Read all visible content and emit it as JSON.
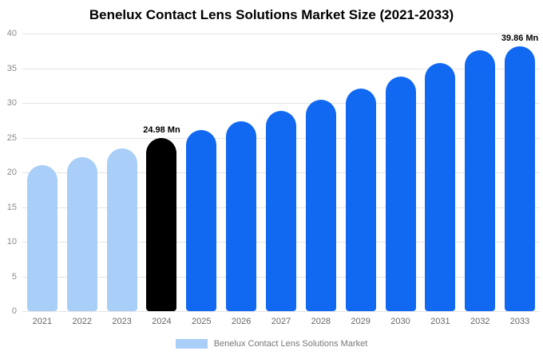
{
  "title": "Benelux Contact Lens Solutions Market Size (2021-2033)",
  "legend": {
    "label": "Benelux Contact Lens Solutions Market",
    "swatch_color": "#a9cef8"
  },
  "chart_data": {
    "type": "bar",
    "title": "Benelux Contact Lens Solutions Market Size (2021-2033)",
    "categories": [
      "2021",
      "2022",
      "2023",
      "2024",
      "2025",
      "2026",
      "2027",
      "2028",
      "2029",
      "2030",
      "2031",
      "2032",
      "2033"
    ],
    "values": [
      21.0,
      22.2,
      23.4,
      24.98,
      26.1,
      27.4,
      28.9,
      30.5,
      32.1,
      33.8,
      35.7,
      37.6,
      39.86
    ],
    "bar_colors": [
      "#a9cef8",
      "#a9cef8",
      "#a9cef8",
      "#000000",
      "#1169f2",
      "#1169f2",
      "#1169f2",
      "#1169f2",
      "#1169f2",
      "#1169f2",
      "#1169f2",
      "#1169f2",
      "#1169f2"
    ],
    "xlabel": "",
    "ylabel": "",
    "ylim": [
      0,
      40
    ],
    "yticks": [
      0,
      5,
      10,
      15,
      20,
      25,
      30,
      35,
      40
    ],
    "grid": true,
    "legend_position": "bottom",
    "annotations": [
      {
        "category": "2024",
        "text": "24.98 Mn"
      },
      {
        "category": "2033",
        "text": "39.86 Mn"
      }
    ]
  }
}
